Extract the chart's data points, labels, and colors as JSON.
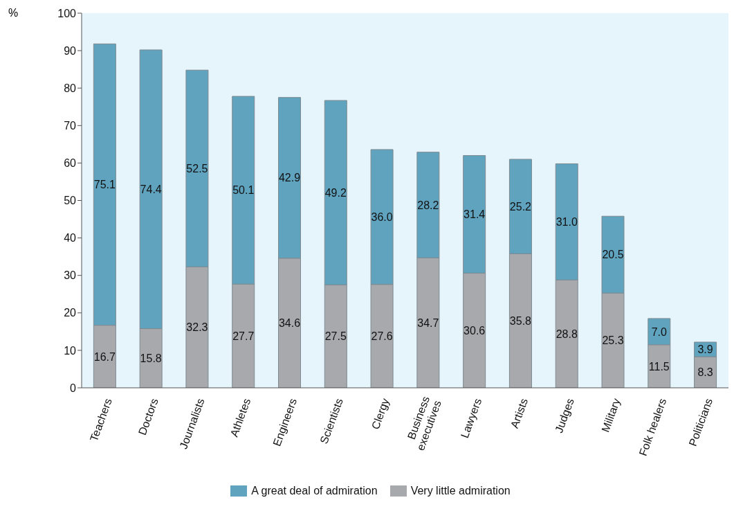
{
  "chart_data": {
    "type": "bar",
    "stacked": true,
    "ylabel": "%",
    "categories": [
      "Teachers",
      "Doctors",
      "Journalists",
      "Athletes",
      "Engineers",
      "Scientists",
      "Clergy",
      "Business executives",
      "Lawyers",
      "Artists",
      "Judges",
      "Military",
      "Folk healers",
      "Politicians"
    ],
    "series": [
      {
        "name": "Very little admiration",
        "color": "#a7a9ac",
        "values": [
          16.7,
          15.8,
          32.3,
          27.7,
          34.6,
          27.5,
          27.6,
          34.7,
          30.6,
          35.8,
          28.8,
          25.3,
          11.5,
          8.3
        ],
        "value_labels": [
          "16.7",
          "15.8",
          "32.3",
          "27.7",
          "34.6",
          "27.5",
          "27.6",
          "34.7",
          "30.6",
          "35.8",
          "28.8",
          "25.3",
          "11.5",
          "8.3"
        ]
      },
      {
        "name": "A great deal of admiration",
        "color": "#5fa3be",
        "values": [
          75.1,
          74.4,
          52.5,
          50.1,
          42.9,
          49.2,
          36.0,
          28.2,
          31.4,
          25.2,
          31.0,
          20.5,
          7.0,
          3.9
        ],
        "value_labels": [
          "75.1",
          "74.4",
          "52.5",
          "50.1",
          "42.9",
          "49.2",
          "36.0",
          "28.2",
          "31.4",
          "25.2",
          "31.0",
          "20.5",
          "7.0",
          "3.9"
        ]
      }
    ],
    "ylim": [
      0,
      100
    ],
    "yticks": [
      0,
      10,
      20,
      30,
      40,
      50,
      60,
      70,
      80,
      90,
      100
    ],
    "legend": "bottom"
  }
}
